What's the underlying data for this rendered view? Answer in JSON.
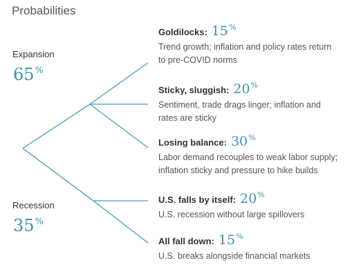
{
  "title": "Probabilities",
  "colors": {
    "accent": "#3f8fa8",
    "line": "#4a9bb3",
    "text": "#333333"
  },
  "branches": [
    {
      "label": "Expansion",
      "value": "65",
      "unit": "%"
    },
    {
      "label": "Recession",
      "value": "35",
      "unit": "%"
    }
  ],
  "scenarios": [
    {
      "name": "Goldilocks:",
      "value": "15",
      "unit": "%",
      "desc_lines": [
        "Trend growth; inflation and policy rates return",
        "to pre-COVID norms"
      ]
    },
    {
      "name": "Sticky, sluggish:",
      "value": "20",
      "unit": "%",
      "desc_lines": [
        "Sentiment, trade drags linger; inflation and",
        "rates are sticky"
      ]
    },
    {
      "name": "Losing balance:",
      "value": "30",
      "unit": "%",
      "desc_lines": [
        "Labor demand recouples to weak labor supply;",
        "inflation sticky and pressure to hike builds"
      ]
    },
    {
      "name": "U.S. falls by itself:",
      "value": "20",
      "unit": "%",
      "desc_lines": [
        "U.S. recession without large spillovers"
      ]
    },
    {
      "name": "All fall down:",
      "value": "15",
      "unit": "%",
      "desc_lines": [
        "U.S. breaks alongside financial markets"
      ]
    }
  ]
}
